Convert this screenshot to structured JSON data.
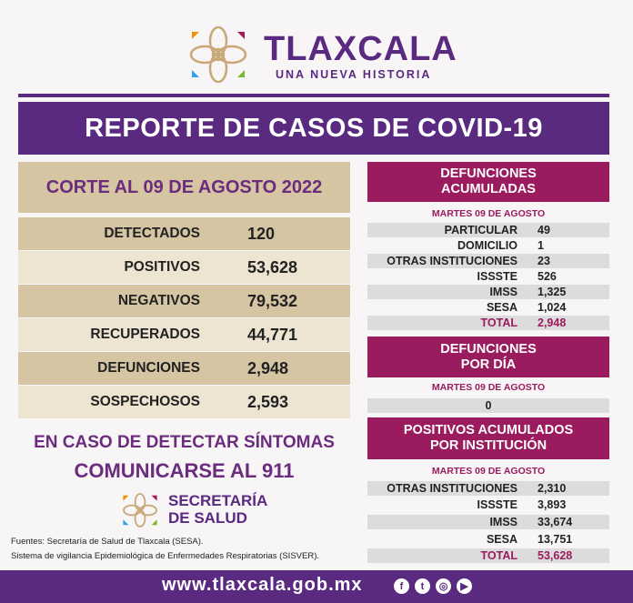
{
  "header": {
    "brand": "TLAXCALA",
    "tagline": "UNA NUEVA HISTORIA"
  },
  "title": "REPORTE DE CASOS DE COVID-19",
  "corte": "CORTE AL 09 DE AGOSTO 2022",
  "summary": [
    {
      "label": "DETECTADOS",
      "value": "120"
    },
    {
      "label": "POSITIVOS",
      "value": "53,628"
    },
    {
      "label": "NEGATIVOS",
      "value": "79,532"
    },
    {
      "label": "RECUPERADOS",
      "value": "44,771"
    },
    {
      "label": "DEFUNCIONES",
      "value": "2,948"
    },
    {
      "label": "SOSPECHOSOS",
      "value": "2,593"
    }
  ],
  "defunciones_acumuladas": {
    "title1": "DEFUNCIONES",
    "title2": "ACUMULADAS",
    "date": "MARTES 09 DE AGOSTO",
    "rows": [
      {
        "label": "PARTICULAR",
        "value": "49"
      },
      {
        "label": "DOMICILIO",
        "value": "1"
      },
      {
        "label": "OTRAS INSTITUCIONES",
        "value": "23"
      },
      {
        "label": "ISSSTE",
        "value": "526"
      },
      {
        "label": "IMSS",
        "value": "1,325"
      },
      {
        "label": "SESA",
        "value": "1,024"
      },
      {
        "label": "TOTAL",
        "value": "2,948"
      }
    ]
  },
  "defunciones_dia": {
    "title1": "DEFUNCIONES",
    "title2": "POR DÍA",
    "date": "MARTES 09 DE AGOSTO",
    "value": "0"
  },
  "positivos_institucion": {
    "title1": "POSITIVOS ACUMULADOS",
    "title2": "POR INSTITUCIÓN",
    "date": "MARTES 09 DE AGOSTO",
    "rows": [
      {
        "label": "OTRAS INSTITUCIONES",
        "value": "2,310"
      },
      {
        "label": "ISSSTE",
        "value": "3,893"
      },
      {
        "label": "IMSS",
        "value": "33,674"
      },
      {
        "label": "SESA",
        "value": "13,751"
      },
      {
        "label": "TOTAL",
        "value": "53,628"
      }
    ]
  },
  "cta": {
    "line1": "EN CASO DE DETECTAR SÍNTOMAS",
    "line2": "COMUNICARSE AL 911"
  },
  "secretaria": {
    "line1": "SECRETARÍA",
    "line2": "DE SALUD"
  },
  "sources": [
    "Fuentes:  Secretaría de Salud de Tlaxcala (SESA).",
    "Sistema de vigilancia Epidemiológica de Enfermedades Respiratorias (SISVER)."
  ],
  "footer": {
    "url": "www.tlaxcala.gob.mx",
    "social": [
      "facebook-icon",
      "twitter-icon",
      "instagram-icon",
      "youtube-icon"
    ]
  },
  "colors": {
    "purple": "#5a2a80",
    "magenta": "#9b1b5f",
    "tan": "#d6c5a2"
  }
}
